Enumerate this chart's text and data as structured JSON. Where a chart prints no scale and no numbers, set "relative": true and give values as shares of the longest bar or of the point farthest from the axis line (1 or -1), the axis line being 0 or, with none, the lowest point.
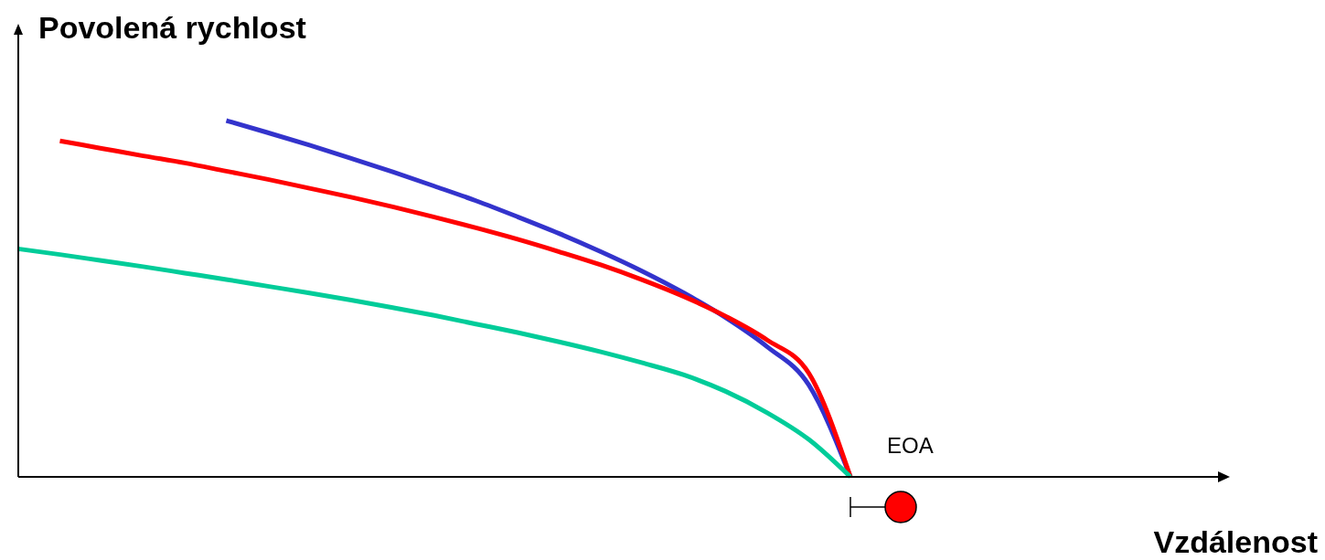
{
  "chart_data": {
    "type": "line",
    "relative": true,
    "xlabel": "Vzdálenost",
    "ylabel": "Povolená rychlost",
    "annotations": [
      "EOA"
    ],
    "categories": [
      null,
      null,
      null,
      null,
      null,
      null,
      null,
      null,
      null,
      null,
      null,
      null,
      null,
      null,
      null,
      null,
      null,
      null,
      null,
      null,
      null,
      null,
      null,
      null,
      null,
      null,
      null,
      null,
      null,
      null
    ],
    "series": [
      {
        "color": "#3333cc",
        "values": [
          null,
          null,
          null,
          null,
          null,
          1.0,
          0.966,
          0.931,
          0.894,
          0.856,
          0.816,
          0.775,
          0.73,
          0.683,
          0.632,
          0.577,
          0.516,
          0.447,
          0.365,
          0.258,
          0,
          null,
          null,
          null,
          null,
          null,
          null,
          null,
          null,
          null
        ]
      },
      {
        "color": "#ff0000",
        "values": [
          null,
          0.943,
          0.922,
          0.901,
          0.881,
          0.858,
          0.835,
          0.81,
          0.785,
          0.758,
          0.729,
          0.699,
          0.667,
          0.632,
          0.595,
          0.553,
          0.506,
          0.451,
          0.384,
          0.291,
          0,
          null,
          null,
          null,
          null,
          null,
          null,
          null,
          null,
          null
        ]
      },
      {
        "color": "#00cc99",
        "values": [
          0.64,
          0.624,
          0.607,
          0.59,
          0.572,
          0.554,
          0.535,
          0.516,
          0.496,
          0.475,
          0.453,
          0.429,
          0.405,
          0.379,
          0.351,
          0.32,
          0.286,
          0.24,
          0.18,
          0.105,
          0,
          null,
          null,
          null,
          null,
          null,
          null,
          null,
          null,
          null
        ]
      }
    ]
  }
}
